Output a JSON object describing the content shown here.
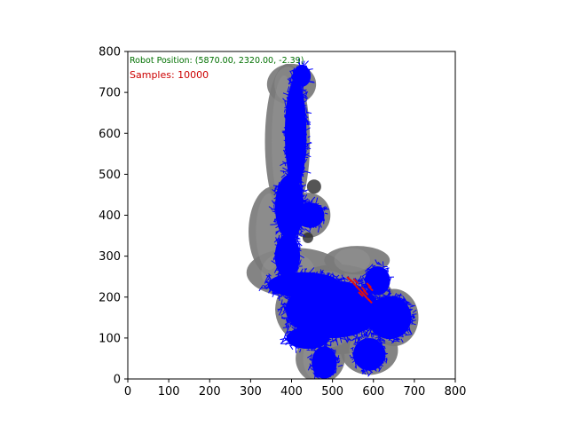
{
  "chart_data": {
    "type": "scatter",
    "annotations": {
      "robot_position": "Robot Position: (5870.00, 2320.00, -2.39)",
      "samples": "Samples: 10000"
    },
    "xlim": [
      0,
      800
    ],
    "ylim": [
      0,
      800
    ],
    "x_ticks": [
      0,
      100,
      200,
      300,
      400,
      500,
      600,
      700,
      800
    ],
    "y_ticks": [
      0,
      100,
      200,
      300,
      400,
      500,
      600,
      700,
      800
    ],
    "x_tick_labels": [
      "0",
      "100",
      "200",
      "300",
      "400",
      "500",
      "600",
      "700",
      "800"
    ],
    "y_tick_labels": [
      "0",
      "100",
      "200",
      "300",
      "400",
      "500",
      "600",
      "700",
      "800"
    ],
    "grid": false,
    "map_region_color": "#7a7a7a",
    "samples_color": "#0000ff",
    "robot_estimate_color": "#e01010",
    "robot_position_text_color": "#007000",
    "samples_text_color": "#cc0000",
    "map_regions": [
      {
        "x": 390,
        "y": 580,
        "rx": 55,
        "ry": 190
      },
      {
        "x": 400,
        "y": 720,
        "rx": 60,
        "ry": 50
      },
      {
        "x": 355,
        "y": 360,
        "rx": 60,
        "ry": 110
      },
      {
        "x": 440,
        "y": 400,
        "rx": 55,
        "ry": 55
      },
      {
        "x": 410,
        "y": 260,
        "rx": 120,
        "ry": 60
      },
      {
        "x": 510,
        "y": 170,
        "rx": 150,
        "ry": 110
      },
      {
        "x": 650,
        "y": 150,
        "rx": 60,
        "ry": 70
      },
      {
        "x": 470,
        "y": 50,
        "rx": 60,
        "ry": 60
      },
      {
        "x": 590,
        "y": 70,
        "rx": 70,
        "ry": 60
      },
      {
        "x": 560,
        "y": 290,
        "rx": 80,
        "ry": 35
      }
    ],
    "sample_regions": [
      {
        "x": 425,
        "y": 740,
        "rx": 25,
        "ry": 30
      },
      {
        "x": 410,
        "y": 600,
        "rx": 30,
        "ry": 150
      },
      {
        "x": 395,
        "y": 420,
        "rx": 40,
        "ry": 90
      },
      {
        "x": 445,
        "y": 400,
        "rx": 40,
        "ry": 35
      },
      {
        "x": 390,
        "y": 300,
        "rx": 35,
        "ry": 60
      },
      {
        "x": 430,
        "y": 230,
        "rx": 100,
        "ry": 35
      },
      {
        "x": 500,
        "y": 170,
        "rx": 130,
        "ry": 80
      },
      {
        "x": 640,
        "y": 150,
        "rx": 60,
        "ry": 60
      },
      {
        "x": 610,
        "y": 240,
        "rx": 35,
        "ry": 40
      },
      {
        "x": 480,
        "y": 40,
        "rx": 35,
        "ry": 45
      },
      {
        "x": 590,
        "y": 60,
        "rx": 45,
        "ry": 45
      },
      {
        "x": 440,
        "y": 100,
        "rx": 60,
        "ry": 30
      }
    ],
    "robot_estimates": [
      {
        "x": 540,
        "y": 245
      },
      {
        "x": 548,
        "y": 238
      },
      {
        "x": 555,
        "y": 230
      },
      {
        "x": 562,
        "y": 222
      },
      {
        "x": 570,
        "y": 214
      },
      {
        "x": 577,
        "y": 206
      },
      {
        "x": 584,
        "y": 198
      },
      {
        "x": 590,
        "y": 192
      },
      {
        "x": 580,
        "y": 212
      },
      {
        "x": 575,
        "y": 220
      },
      {
        "x": 588,
        "y": 230
      },
      {
        "x": 592,
        "y": 222
      },
      {
        "x": 568,
        "y": 208
      },
      {
        "x": 556,
        "y": 240
      }
    ],
    "dark_spots": [
      {
        "x": 505,
        "y": 155,
        "r": 12
      },
      {
        "x": 455,
        "y": 470,
        "r": 8
      },
      {
        "x": 440,
        "y": 345,
        "r": 6
      }
    ]
  }
}
